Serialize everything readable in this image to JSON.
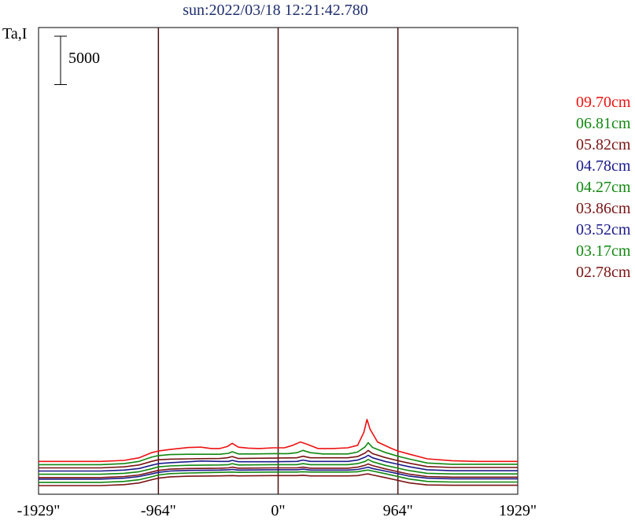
{
  "chart_data": {
    "type": "line",
    "title": "sun:2022/03/18 12:21:42.780",
    "ylabel": "Ta,I",
    "xlim": [
      -1929,
      1929
    ],
    "x_ticks": [
      {
        "value": -1929,
        "label": "-1929\""
      },
      {
        "value": -964,
        "label": "-964\""
      },
      {
        "value": 0,
        "label": "0\""
      },
      {
        "value": 964,
        "label": "964\""
      },
      {
        "value": 1929,
        "label": "1929\""
      }
    ],
    "vertical_lines": [
      -964,
      0,
      964
    ],
    "scale_bar": {
      "value": 5000,
      "label": "5000"
    },
    "series": [
      {
        "name": "09.70cm",
        "color": "#ee1111",
        "baseline": 6500,
        "points": [
          [
            -1929,
            0
          ],
          [
            -1430,
            0
          ],
          [
            -1240,
            300
          ],
          [
            -1120,
            1100
          ],
          [
            -1020,
            2700
          ],
          [
            -964,
            3200
          ],
          [
            -870,
            3700
          ],
          [
            -720,
            4300
          ],
          [
            -620,
            4400
          ],
          [
            -540,
            4000
          ],
          [
            -470,
            4000
          ],
          [
            -410,
            4600
          ],
          [
            -370,
            5600
          ],
          [
            -320,
            4400
          ],
          [
            -240,
            4100
          ],
          [
            -150,
            4000
          ],
          [
            -40,
            4200
          ],
          [
            50,
            4200
          ],
          [
            110,
            4900
          ],
          [
            180,
            6000
          ],
          [
            240,
            5200
          ],
          [
            320,
            4000
          ],
          [
            440,
            4000
          ],
          [
            560,
            4200
          ],
          [
            640,
            5000
          ],
          [
            690,
            9000
          ],
          [
            715,
            13000
          ],
          [
            740,
            10000
          ],
          [
            800,
            6000
          ],
          [
            900,
            4200
          ],
          [
            964,
            3200
          ],
          [
            1060,
            2200
          ],
          [
            1200,
            800
          ],
          [
            1400,
            200
          ],
          [
            1600,
            0
          ],
          [
            1929,
            0
          ]
        ]
      },
      {
        "name": "06.81cm",
        "color": "#118811",
        "baseline": 5500,
        "points": [
          [
            -1929,
            0
          ],
          [
            -1430,
            0
          ],
          [
            -1240,
            300
          ],
          [
            -1120,
            1000
          ],
          [
            -1020,
            2300
          ],
          [
            -964,
            2800
          ],
          [
            -870,
            3100
          ],
          [
            -720,
            3200
          ],
          [
            -620,
            3200
          ],
          [
            -470,
            3200
          ],
          [
            -400,
            3500
          ],
          [
            -370,
            4000
          ],
          [
            -320,
            3300
          ],
          [
            -200,
            3300
          ],
          [
            -40,
            3400
          ],
          [
            80,
            3400
          ],
          [
            150,
            3700
          ],
          [
            200,
            4400
          ],
          [
            260,
            3700
          ],
          [
            360,
            3300
          ],
          [
            560,
            3300
          ],
          [
            640,
            3900
          ],
          [
            700,
            5500
          ],
          [
            725,
            6800
          ],
          [
            760,
            5300
          ],
          [
            860,
            3800
          ],
          [
            964,
            2600
          ],
          [
            1060,
            1700
          ],
          [
            1200,
            500
          ],
          [
            1400,
            100
          ],
          [
            1929,
            100
          ]
        ]
      },
      {
        "name": "05.82cm",
        "color": "#7a1414",
        "baseline": 4500,
        "points": [
          [
            -1929,
            0
          ],
          [
            -1430,
            0
          ],
          [
            -1240,
            300
          ],
          [
            -1120,
            900
          ],
          [
            -1020,
            2000
          ],
          [
            -964,
            2500
          ],
          [
            -870,
            2700
          ],
          [
            -720,
            2800
          ],
          [
            -470,
            2900
          ],
          [
            -410,
            3100
          ],
          [
            -370,
            3500
          ],
          [
            -320,
            2900
          ],
          [
            -40,
            3000
          ],
          [
            150,
            3100
          ],
          [
            200,
            3600
          ],
          [
            260,
            3100
          ],
          [
            560,
            3100
          ],
          [
            640,
            3500
          ],
          [
            700,
            4600
          ],
          [
            725,
            5400
          ],
          [
            760,
            4400
          ],
          [
            860,
            3200
          ],
          [
            964,
            2200
          ],
          [
            1060,
            1400
          ],
          [
            1200,
            400
          ],
          [
            1400,
            100
          ],
          [
            1929,
            100
          ]
        ]
      },
      {
        "name": "04.78cm",
        "color": "#1a1a8a",
        "baseline": 3500,
        "points": [
          [
            -1929,
            0
          ],
          [
            -1430,
            0
          ],
          [
            -1240,
            300
          ],
          [
            -1120,
            800
          ],
          [
            -1020,
            1800
          ],
          [
            -964,
            2300
          ],
          [
            -870,
            2600
          ],
          [
            -720,
            2900
          ],
          [
            -620,
            3100
          ],
          [
            -470,
            3000
          ],
          [
            -400,
            3000
          ],
          [
            -370,
            3300
          ],
          [
            -320,
            2900
          ],
          [
            -40,
            2900
          ],
          [
            150,
            3000
          ],
          [
            200,
            3400
          ],
          [
            260,
            3000
          ],
          [
            560,
            3000
          ],
          [
            640,
            3400
          ],
          [
            700,
            4300
          ],
          [
            725,
            4900
          ],
          [
            760,
            4100
          ],
          [
            860,
            3000
          ],
          [
            964,
            2100
          ],
          [
            1060,
            1300
          ],
          [
            1200,
            400
          ],
          [
            1400,
            100
          ],
          [
            1929,
            100
          ]
        ]
      },
      {
        "name": "04.27cm",
        "color": "#118811",
        "baseline": 2500,
        "points": [
          [
            -1929,
            0
          ],
          [
            -1430,
            0
          ],
          [
            -1240,
            300
          ],
          [
            -1120,
            800
          ],
          [
            -1020,
            1700
          ],
          [
            -964,
            2300
          ],
          [
            -870,
            2600
          ],
          [
            -720,
            2800
          ],
          [
            -470,
            2900
          ],
          [
            -400,
            3000
          ],
          [
            -370,
            3300
          ],
          [
            -320,
            2900
          ],
          [
            -40,
            3000
          ],
          [
            150,
            3000
          ],
          [
            200,
            3300
          ],
          [
            260,
            3000
          ],
          [
            560,
            3000
          ],
          [
            640,
            3300
          ],
          [
            700,
            4000
          ],
          [
            725,
            4600
          ],
          [
            760,
            3900
          ],
          [
            860,
            2800
          ],
          [
            964,
            1900
          ],
          [
            1060,
            1100
          ],
          [
            1200,
            300
          ],
          [
            1400,
            100
          ],
          [
            1929,
            100
          ]
        ]
      },
      {
        "name": "03.86cm",
        "color": "#7a1414",
        "baseline": 1500,
        "points": [
          [
            -1929,
            0
          ],
          [
            -1430,
            0
          ],
          [
            -1240,
            300
          ],
          [
            -1120,
            800
          ],
          [
            -1020,
            1700
          ],
          [
            -964,
            2200
          ],
          [
            -870,
            2600
          ],
          [
            -720,
            2800
          ],
          [
            -470,
            2900
          ],
          [
            -400,
            3000
          ],
          [
            -370,
            3200
          ],
          [
            -320,
            2900
          ],
          [
            -40,
            3000
          ],
          [
            150,
            3000
          ],
          [
            200,
            3200
          ],
          [
            260,
            2900
          ],
          [
            560,
            2900
          ],
          [
            640,
            3200
          ],
          [
            700,
            3800
          ],
          [
            725,
            4200
          ],
          [
            760,
            3700
          ],
          [
            860,
            2700
          ],
          [
            964,
            1800
          ],
          [
            1060,
            1000
          ],
          [
            1200,
            300
          ],
          [
            1400,
            100
          ],
          [
            1929,
            100
          ]
        ]
      },
      {
        "name": "03.52cm",
        "color": "#1a1a8a",
        "baseline": 1000,
        "points": [
          [
            -1929,
            0
          ],
          [
            -1430,
            0
          ],
          [
            -1240,
            300
          ],
          [
            -1120,
            800
          ],
          [
            -1020,
            1600
          ],
          [
            -964,
            2100
          ],
          [
            -870,
            2500
          ],
          [
            -720,
            2700
          ],
          [
            -470,
            2800
          ],
          [
            -400,
            2900
          ],
          [
            -370,
            3000
          ],
          [
            -320,
            2800
          ],
          [
            -40,
            2900
          ],
          [
            150,
            2900
          ],
          [
            200,
            3100
          ],
          [
            260,
            2800
          ],
          [
            560,
            2800
          ],
          [
            640,
            3000
          ],
          [
            700,
            3500
          ],
          [
            725,
            3700
          ],
          [
            760,
            3300
          ],
          [
            860,
            2500
          ],
          [
            964,
            1700
          ],
          [
            1060,
            900
          ],
          [
            1200,
            300
          ],
          [
            1400,
            100
          ],
          [
            1929,
            100
          ]
        ]
      },
      {
        "name": "03.17cm",
        "color": "#118811",
        "baseline": 0,
        "points": [
          [
            -1929,
            0
          ],
          [
            -1430,
            0
          ],
          [
            -1240,
            300
          ],
          [
            -1120,
            800
          ],
          [
            -1020,
            1700
          ],
          [
            -964,
            2300
          ],
          [
            -870,
            2700
          ],
          [
            -720,
            2900
          ],
          [
            -470,
            3100
          ],
          [
            -370,
            3200
          ],
          [
            -320,
            3100
          ],
          [
            -40,
            3200
          ],
          [
            150,
            3200
          ],
          [
            200,
            3300
          ],
          [
            260,
            3200
          ],
          [
            560,
            3200
          ],
          [
            640,
            3300
          ],
          [
            700,
            3700
          ],
          [
            725,
            3800
          ],
          [
            760,
            3500
          ],
          [
            860,
            2700
          ],
          [
            964,
            1800
          ],
          [
            1060,
            1000
          ],
          [
            1200,
            300
          ],
          [
            1400,
            100
          ],
          [
            1929,
            100
          ]
        ]
      },
      {
        "name": "02.78cm",
        "color": "#7a1414",
        "baseline": -1000,
        "points": [
          [
            -1929,
            0
          ],
          [
            -1430,
            0
          ],
          [
            -1240,
            300
          ],
          [
            -1120,
            800
          ],
          [
            -1020,
            1800
          ],
          [
            -964,
            2300
          ],
          [
            -870,
            2700
          ],
          [
            -720,
            2900
          ],
          [
            -470,
            3000
          ],
          [
            -370,
            3100
          ],
          [
            -320,
            3000
          ],
          [
            -40,
            3100
          ],
          [
            150,
            3100
          ],
          [
            200,
            3200
          ],
          [
            260,
            3000
          ],
          [
            560,
            3000
          ],
          [
            640,
            3100
          ],
          [
            700,
            3500
          ],
          [
            725,
            3600
          ],
          [
            760,
            3300
          ],
          [
            860,
            2500
          ],
          [
            964,
            1600
          ],
          [
            1060,
            800
          ],
          [
            1200,
            200
          ],
          [
            1400,
            100
          ],
          [
            1929,
            100
          ]
        ]
      }
    ]
  }
}
